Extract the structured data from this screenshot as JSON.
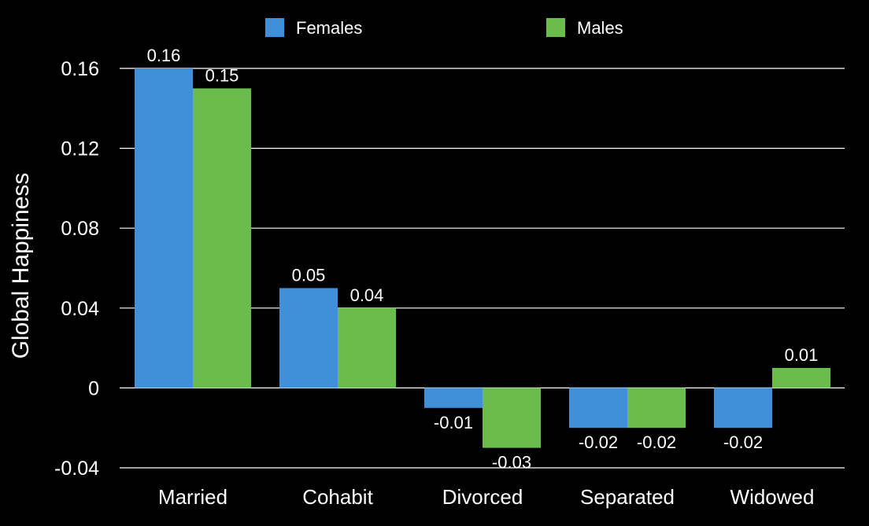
{
  "chart_data": {
    "type": "bar",
    "categories": [
      "Married",
      "Cohabit",
      "Divorced",
      "Separated",
      "Widowed"
    ],
    "series": [
      {
        "name": "Females",
        "color": "#3f8fd9",
        "values": [
          0.16,
          0.05,
          -0.01,
          -0.02,
          -0.02
        ],
        "labels": [
          "0.16",
          "0.05",
          "-0.01",
          "-0.02",
          "-0.02"
        ]
      },
      {
        "name": "Males",
        "color": "#6abd4b",
        "values": [
          0.15,
          0.04,
          -0.03,
          -0.02,
          0.01
        ],
        "labels": [
          "0.15",
          "0.04",
          "-0.03",
          "-0.02",
          "0.01"
        ]
      }
    ],
    "ylabel": "Global Happiness",
    "xlabel": "",
    "ylim": [
      -0.04,
      0.16
    ],
    "yticks": [
      -0.04,
      0,
      0.04,
      0.08,
      0.12,
      0.16
    ],
    "ytick_labels": [
      "-0.04",
      "0",
      "0.04",
      "0.08",
      "0.12",
      "0.16"
    ],
    "grid": true,
    "legend_position": "top",
    "background": "#000000",
    "grid_color": "#ffffff",
    "text_color": "#ffffff"
  }
}
